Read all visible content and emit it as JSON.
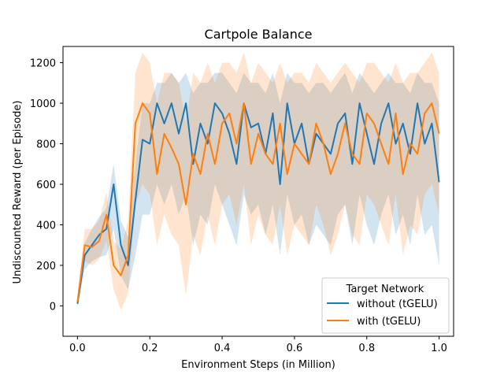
{
  "chart_data": {
    "type": "line",
    "title": "Cartpole Balance",
    "xlabel": "Environment Steps (in Million)",
    "ylabel": "Undiscounted Reward (per Episode)",
    "xlim": [
      -0.04,
      1.04
    ],
    "ylim": [
      -150,
      1280
    ],
    "xticks": [
      0.0,
      0.2,
      0.4,
      0.6,
      0.8,
      1.0
    ],
    "xtick_labels": [
      "0.0",
      "0.2",
      "0.4",
      "0.6",
      "0.8",
      "1.0"
    ],
    "yticks": [
      0,
      200,
      400,
      600,
      800,
      1000,
      1200
    ],
    "ytick_labels": [
      "0",
      "200",
      "400",
      "600",
      "800",
      "1000",
      "1200"
    ],
    "grid": false,
    "legend": {
      "title": "Target Network",
      "location": "lower-right"
    },
    "series": [
      {
        "name": "without (tGELU)",
        "color": "#1f77b4",
        "x": [
          0.0,
          0.02,
          0.04,
          0.06,
          0.08,
          0.1,
          0.12,
          0.14,
          0.16,
          0.18,
          0.2,
          0.22,
          0.24,
          0.26,
          0.28,
          0.3,
          0.32,
          0.34,
          0.36,
          0.38,
          0.4,
          0.42,
          0.44,
          0.46,
          0.48,
          0.5,
          0.52,
          0.54,
          0.56,
          0.58,
          0.6,
          0.62,
          0.64,
          0.66,
          0.68,
          0.7,
          0.72,
          0.74,
          0.76,
          0.78,
          0.8,
          0.82,
          0.84,
          0.86,
          0.88,
          0.9,
          0.92,
          0.94,
          0.96,
          0.98,
          1.0
        ],
        "y": [
          10,
          250,
          300,
          350,
          380,
          600,
          300,
          200,
          520,
          820,
          800,
          1000,
          900,
          1000,
          850,
          1000,
          700,
          900,
          800,
          1000,
          950,
          850,
          700,
          1000,
          880,
          900,
          750,
          950,
          600,
          1000,
          800,
          900,
          700,
          850,
          800,
          750,
          900,
          950,
          700,
          1000,
          850,
          700,
          900,
          1000,
          800,
          900,
          750,
          1000,
          800,
          900,
          610
        ],
        "upper": [
          40,
          310,
          380,
          440,
          480,
          700,
          420,
          340,
          700,
          1000,
          1000,
          1100,
          1100,
          1150,
          1100,
          1150,
          1050,
          1100,
          1100,
          1150,
          1150,
          1100,
          1050,
          1150,
          1100,
          1100,
          1050,
          1150,
          1000,
          1150,
          1100,
          1100,
          1050,
          1100,
          1100,
          1050,
          1100,
          1150,
          1050,
          1150,
          1100,
          1050,
          1100,
          1150,
          1100,
          1100,
          1050,
          1150,
          1100,
          1100,
          1000
        ],
        "lower": [
          0,
          180,
          220,
          240,
          250,
          380,
          150,
          80,
          250,
          450,
          450,
          600,
          500,
          600,
          450,
          550,
          300,
          450,
          400,
          600,
          500,
          400,
          300,
          550,
          450,
          500,
          350,
          500,
          250,
          550,
          400,
          450,
          300,
          400,
          350,
          300,
          450,
          500,
          300,
          550,
          400,
          300,
          450,
          550,
          350,
          450,
          300,
          550,
          350,
          400,
          200
        ]
      },
      {
        "name": "with (tGELU)",
        "color": "#ff7f0e",
        "x": [
          0.0,
          0.02,
          0.04,
          0.06,
          0.08,
          0.1,
          0.12,
          0.14,
          0.16,
          0.18,
          0.2,
          0.22,
          0.24,
          0.26,
          0.28,
          0.3,
          0.32,
          0.34,
          0.36,
          0.38,
          0.4,
          0.42,
          0.44,
          0.46,
          0.48,
          0.5,
          0.52,
          0.54,
          0.56,
          0.58,
          0.6,
          0.62,
          0.64,
          0.66,
          0.68,
          0.7,
          0.72,
          0.74,
          0.76,
          0.78,
          0.8,
          0.82,
          0.84,
          0.86,
          0.88,
          0.9,
          0.92,
          0.94,
          0.96,
          0.98,
          1.0
        ],
        "y": [
          20,
          300,
          290,
          320,
          450,
          200,
          150,
          250,
          900,
          1000,
          950,
          650,
          850,
          780,
          700,
          500,
          750,
          650,
          850,
          700,
          900,
          950,
          800,
          1000,
          700,
          850,
          750,
          700,
          900,
          650,
          800,
          750,
          700,
          900,
          800,
          650,
          750,
          900,
          750,
          700,
          950,
          900,
          800,
          700,
          950,
          650,
          800,
          750,
          950,
          1000,
          850
        ],
        "upper": [
          40,
          380,
          380,
          420,
          560,
          320,
          280,
          420,
          1150,
          1250,
          1200,
          1000,
          1150,
          1150,
          1100,
          900,
          1150,
          1100,
          1200,
          1100,
          1200,
          1200,
          1150,
          1250,
          1100,
          1200,
          1150,
          1100,
          1200,
          1100,
          1150,
          1150,
          1100,
          1200,
          1150,
          1100,
          1150,
          1200,
          1150,
          1100,
          1200,
          1200,
          1150,
          1100,
          1200,
          1100,
          1150,
          1150,
          1200,
          1250,
          1150
        ],
        "lower": [
          0,
          220,
          200,
          230,
          320,
          80,
          -20,
          60,
          500,
          600,
          550,
          300,
          450,
          350,
          300,
          50,
          350,
          250,
          450,
          300,
          500,
          550,
          400,
          600,
          300,
          450,
          350,
          300,
          500,
          250,
          400,
          350,
          300,
          500,
          400,
          250,
          350,
          500,
          350,
          300,
          550,
          500,
          400,
          300,
          550,
          250,
          400,
          350,
          550,
          600,
          450
        ]
      }
    ]
  }
}
